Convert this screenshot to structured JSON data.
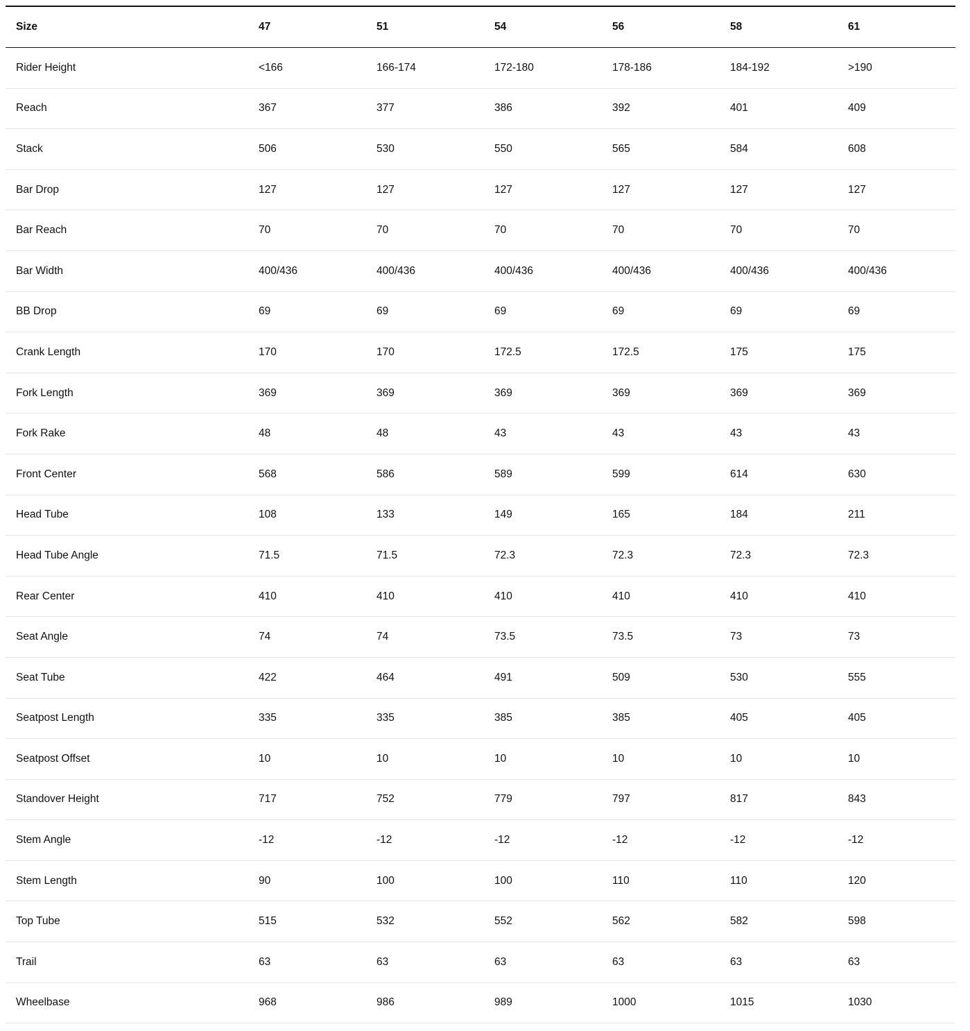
{
  "table": {
    "headers": [
      "Size",
      "47",
      "51",
      "54",
      "56",
      "58",
      "61"
    ],
    "rows": [
      [
        "Rider Height",
        "<166",
        "166-174",
        "172-180",
        "178-186",
        "184-192",
        ">190"
      ],
      [
        "Reach",
        "367",
        "377",
        "386",
        "392",
        "401",
        "409"
      ],
      [
        "Stack",
        "506",
        "530",
        "550",
        "565",
        "584",
        "608"
      ],
      [
        "Bar Drop",
        "127",
        "127",
        "127",
        "127",
        "127",
        "127"
      ],
      [
        "Bar Reach",
        "70",
        "70",
        "70",
        "70",
        "70",
        "70"
      ],
      [
        "Bar Width",
        "400/436",
        "400/436",
        "400/436",
        "400/436",
        "400/436",
        "400/436"
      ],
      [
        "BB Drop",
        "69",
        "69",
        "69",
        "69",
        "69",
        "69"
      ],
      [
        "Crank Length",
        "170",
        "170",
        "172.5",
        "172.5",
        "175",
        "175"
      ],
      [
        "Fork Length",
        "369",
        "369",
        "369",
        "369",
        "369",
        "369"
      ],
      [
        "Fork Rake",
        "48",
        "48",
        "43",
        "43",
        "43",
        "43"
      ],
      [
        "Front Center",
        "568",
        "586",
        "589",
        "599",
        "614",
        "630"
      ],
      [
        "Head Tube",
        "108",
        "133",
        "149",
        "165",
        "184",
        "211"
      ],
      [
        "Head Tube Angle",
        "71.5",
        "71.5",
        "72.3",
        "72.3",
        "72.3",
        "72.3"
      ],
      [
        "Rear Center",
        "410",
        "410",
        "410",
        "410",
        "410",
        "410"
      ],
      [
        "Seat Angle",
        "74",
        "74",
        "73.5",
        "73.5",
        "73",
        "73"
      ],
      [
        "Seat Tube",
        "422",
        "464",
        "491",
        "509",
        "530",
        "555"
      ],
      [
        "Seatpost Length",
        "335",
        "335",
        "385",
        "385",
        "405",
        "405"
      ],
      [
        "Seatpost Offset",
        "10",
        "10",
        "10",
        "10",
        "10",
        "10"
      ],
      [
        "Standover Height",
        "717",
        "752",
        "779",
        "797",
        "817",
        "843"
      ],
      [
        "Stem Angle",
        "-12",
        "-12",
        "-12",
        "-12",
        "-12",
        "-12"
      ],
      [
        "Stem Length",
        "90",
        "100",
        "100",
        "110",
        "110",
        "120"
      ],
      [
        "Top Tube",
        "515",
        "532",
        "552",
        "562",
        "582",
        "598"
      ],
      [
        "Trail",
        "63",
        "63",
        "63",
        "63",
        "63",
        "63"
      ],
      [
        "Wheelbase",
        "968",
        "986",
        "989",
        "1000",
        "1015",
        "1030"
      ]
    ]
  }
}
